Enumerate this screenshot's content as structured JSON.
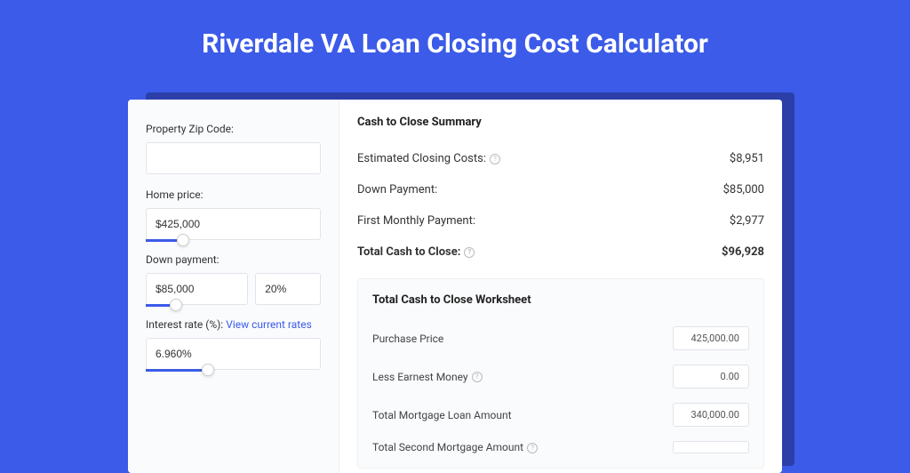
{
  "page": {
    "title": "Riverdale VA Loan Closing Cost Calculator",
    "background_color": "#3b5be8",
    "shadow_color": "#2c3ea8",
    "card_bg": "#ffffff",
    "panel_bg": "#fafbfd",
    "accent_color": "#3b5be8",
    "border_color": "#e1e4e8",
    "text_color": "#333333",
    "title_fontsize": 30
  },
  "form": {
    "zip": {
      "label": "Property Zip Code:",
      "value": ""
    },
    "home_price": {
      "label": "Home price:",
      "value": "$425,000",
      "slider_percent": 18
    },
    "down_payment": {
      "label": "Down payment:",
      "value": "$85,000",
      "percent_value": "20%",
      "slider_percent": 22
    },
    "interest_rate": {
      "label": "Interest rate (%):",
      "link_text": "View current rates",
      "value": "6.960%",
      "slider_percent": 32
    }
  },
  "summary": {
    "title": "Cash to Close Summary",
    "rows": [
      {
        "label": "Estimated Closing Costs:",
        "value": "$8,951",
        "help": true,
        "bold": false
      },
      {
        "label": "Down Payment:",
        "value": "$85,000",
        "help": false,
        "bold": false
      },
      {
        "label": "First Monthly Payment:",
        "value": "$2,977",
        "help": false,
        "bold": false
      },
      {
        "label": "Total Cash to Close:",
        "value": "$96,928",
        "help": true,
        "bold": true
      }
    ]
  },
  "worksheet": {
    "title": "Total Cash to Close Worksheet",
    "rows": [
      {
        "label": "Purchase Price",
        "value": "425,000.00",
        "help": false
      },
      {
        "label": "Less Earnest Money",
        "value": "0.00",
        "help": true
      },
      {
        "label": "Total Mortgage Loan Amount",
        "value": "340,000.00",
        "help": false
      },
      {
        "label": "Total Second Mortgage Amount",
        "value": "",
        "help": true
      }
    ]
  }
}
